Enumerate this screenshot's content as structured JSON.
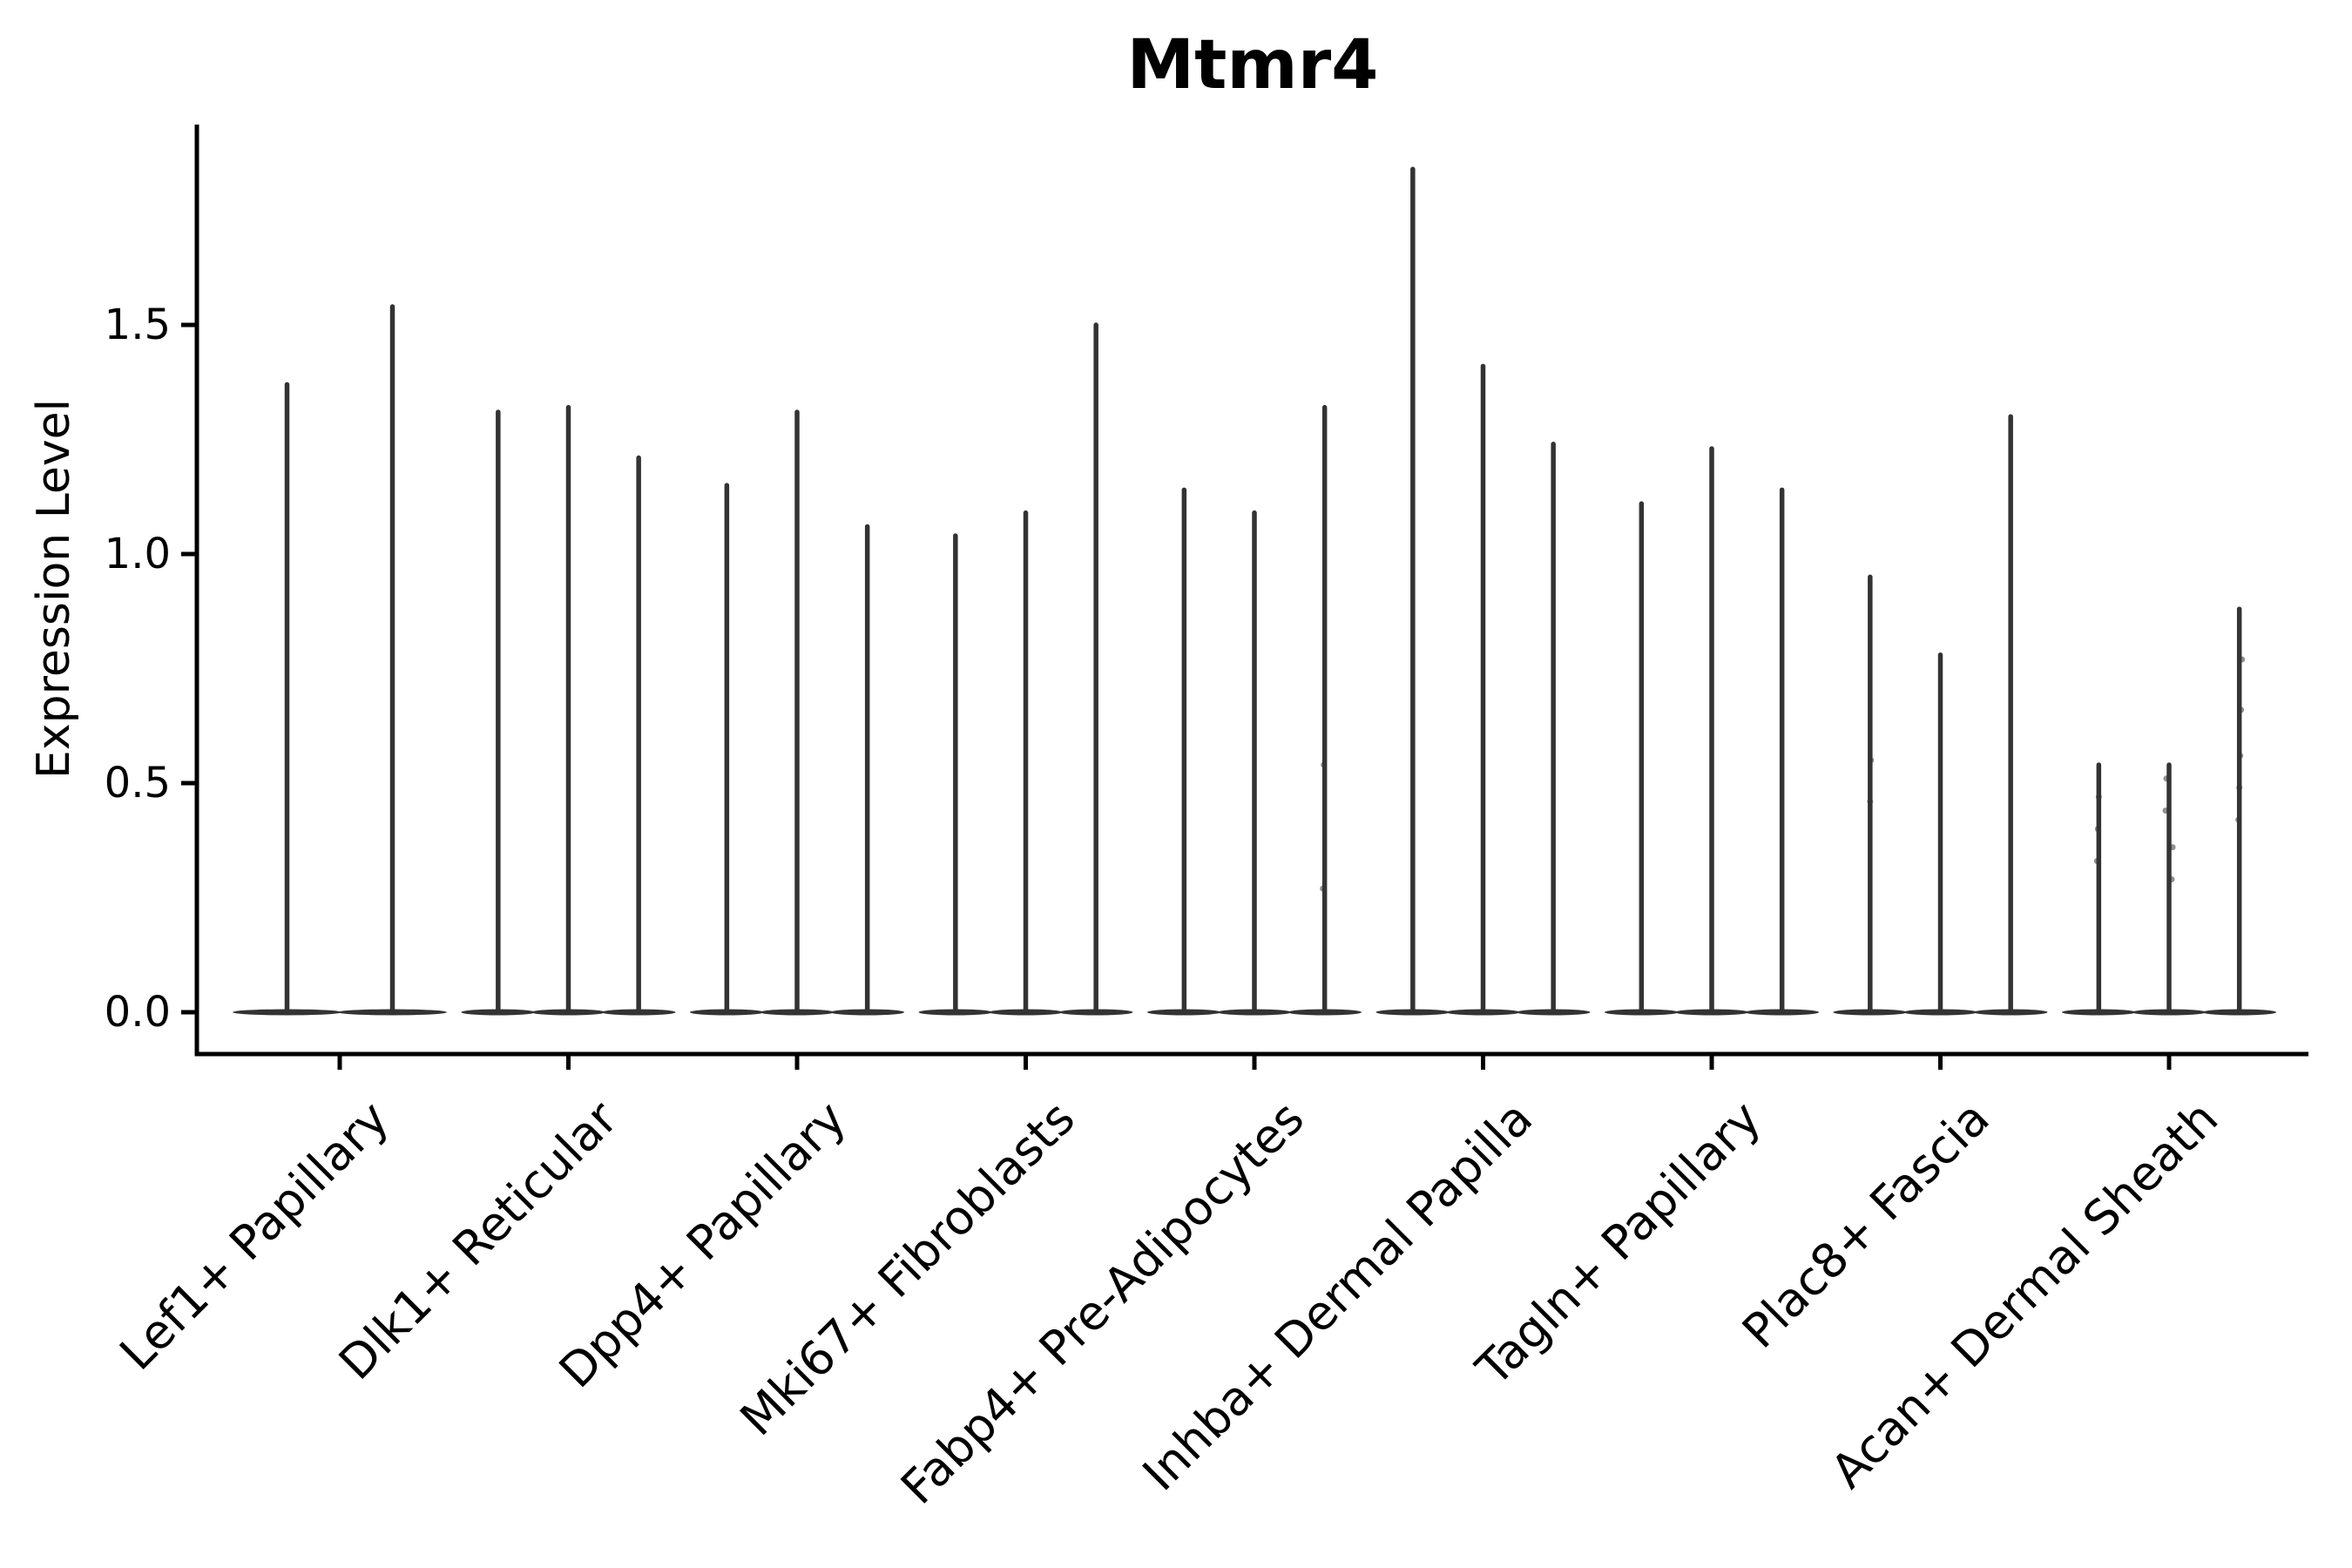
{
  "chart_data": {
    "type": "violin",
    "title": "Mtmr4",
    "xlabel": "",
    "ylabel": "Expression Level",
    "ytick_labels": [
      "0.0",
      "0.5",
      "1.0",
      "1.5"
    ],
    "yticks": [
      0.0,
      0.5,
      1.0,
      1.5
    ],
    "ylim": [
      -0.09,
      1.94
    ],
    "grid": false,
    "legend": "none",
    "violin_color": "#333333",
    "axis_color": "#000000",
    "categories": [
      "Lef1+ Papillary",
      "Dlk1+ Reticular",
      "Dpp4+ Papillary",
      "Mki67+ Fibroblasts",
      "Fabp4+ Pre-Adipocytes",
      "Inhba+ Dermal Papilla",
      "Tagln+ Papillary",
      "Plac8+ Fascia",
      "Acan+ Dermal Sheath"
    ],
    "groups": [
      {
        "label": "Lef1+ Papillary",
        "violins": [
          {
            "max": 1.37,
            "points": []
          },
          {
            "max": 1.54,
            "points": []
          }
        ]
      },
      {
        "label": "Dlk1+ Reticular",
        "violins": [
          {
            "max": 1.31,
            "points": []
          },
          {
            "max": 1.32,
            "points": []
          },
          {
            "max": 1.21,
            "points": []
          }
        ]
      },
      {
        "label": "Dpp4+ Papillary",
        "violins": [
          {
            "max": 1.15,
            "points": []
          },
          {
            "max": 1.31,
            "points": []
          },
          {
            "max": 1.06,
            "points": []
          }
        ]
      },
      {
        "label": "Mki67+ Fibroblasts",
        "violins": [
          {
            "max": 1.04,
            "points": []
          },
          {
            "max": 1.09,
            "points": []
          },
          {
            "max": 1.5,
            "points": []
          }
        ]
      },
      {
        "label": "Fabp4+ Pre-Adipocytes",
        "violins": [
          {
            "max": 1.14,
            "points": []
          },
          {
            "max": 1.09,
            "points": []
          },
          {
            "max": 1.32,
            "points": [
              0.27,
              0.54
            ]
          }
        ]
      },
      {
        "label": "Inhba+ Dermal Papilla",
        "violins": [
          {
            "max": 1.84,
            "points": []
          },
          {
            "max": 1.41,
            "points": []
          },
          {
            "max": 1.24,
            "points": []
          }
        ]
      },
      {
        "label": "Tagln+ Papillary",
        "violins": [
          {
            "max": 1.11,
            "points": []
          },
          {
            "max": 1.23,
            "points": []
          },
          {
            "max": 1.14,
            "points": []
          }
        ]
      },
      {
        "label": "Plac8+ Fascia",
        "violins": [
          {
            "max": 0.95,
            "points": [
              0.46,
              0.55
            ]
          },
          {
            "max": 0.78,
            "points": []
          },
          {
            "max": 1.3,
            "points": []
          }
        ]
      },
      {
        "label": "Acan+ Dermal Sheath",
        "violins": [
          {
            "max": 0.54,
            "points": [
              0.33,
              0.4,
              0.47
            ]
          },
          {
            "max": 0.54,
            "points": [
              0.29,
              0.36,
              0.44,
              0.51
            ]
          },
          {
            "max": 0.88,
            "points": [
              0.42,
              0.49,
              0.56,
              0.66,
              0.77
            ]
          }
        ]
      }
    ]
  }
}
